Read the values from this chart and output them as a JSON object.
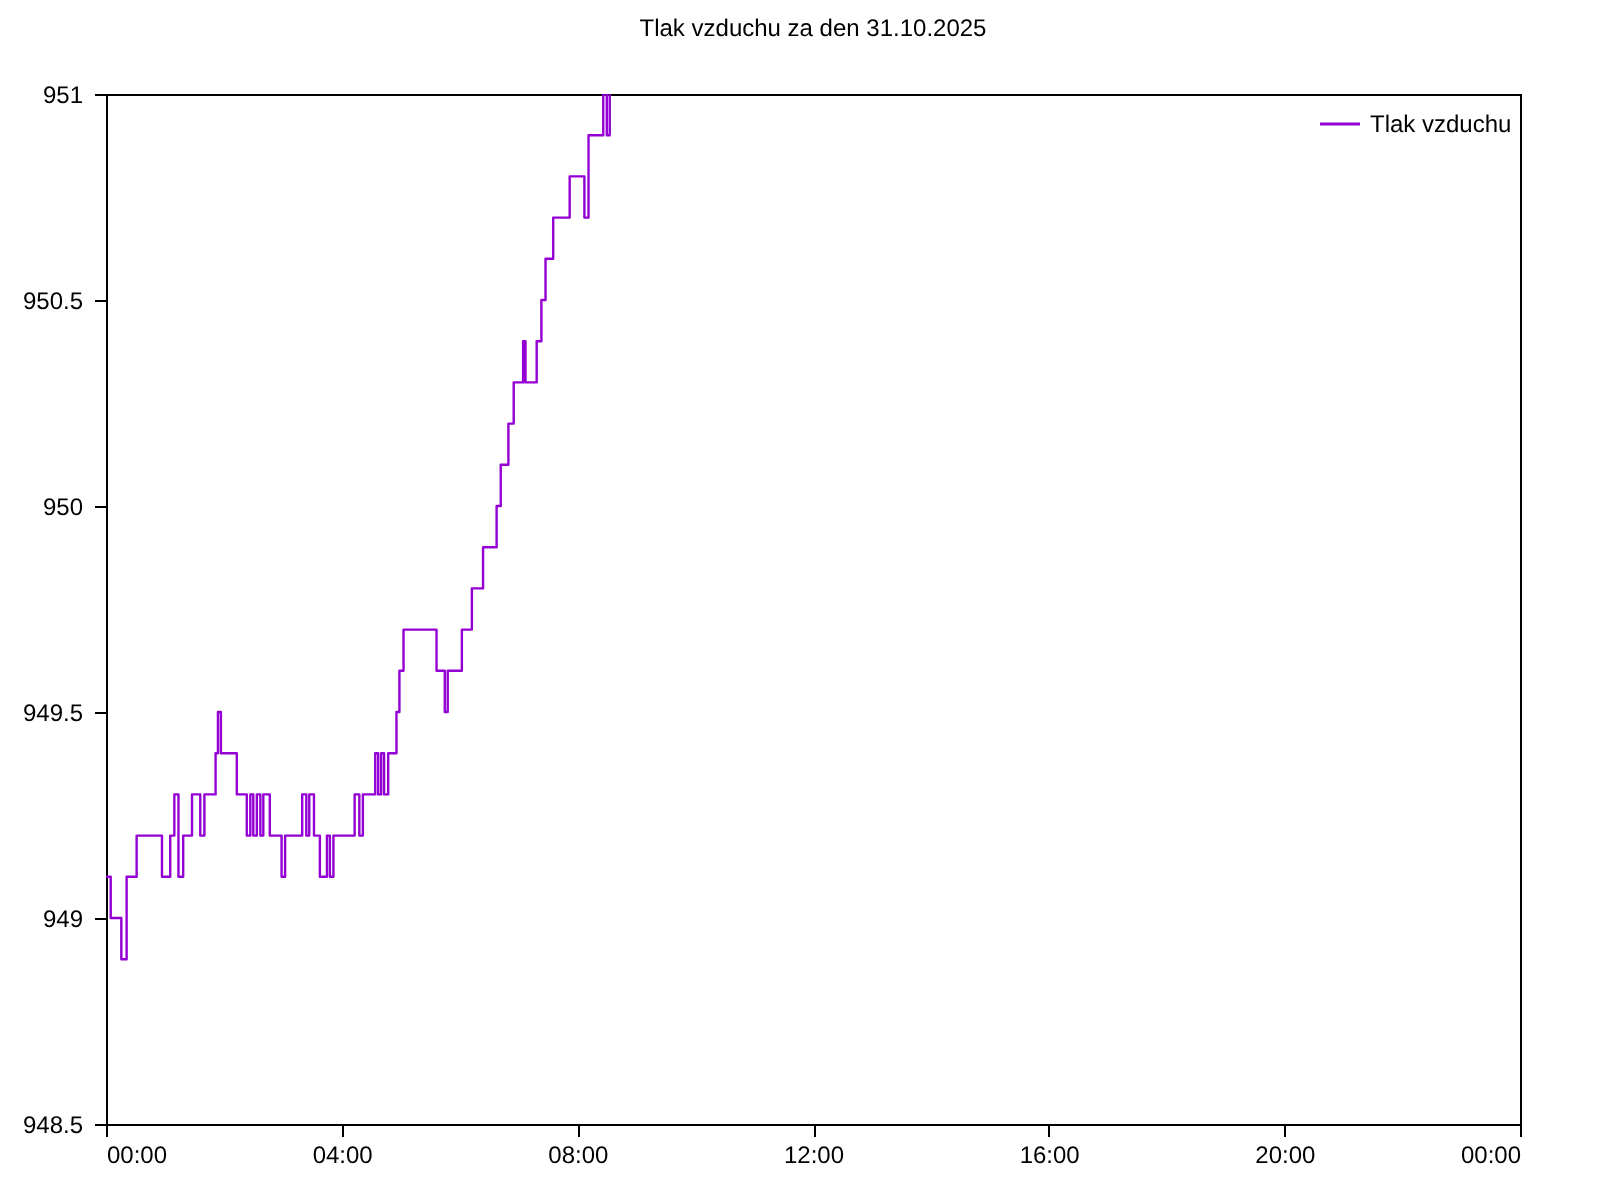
{
  "chart_data": {
    "type": "step",
    "title": "Tlak vzduchu za den 31.10.2025",
    "x": [
      0,
      0.08,
      0.26,
      0.35,
      0.52,
      0.95,
      1.09,
      1.16,
      1.23,
      1.31,
      1.46,
      1.6,
      1.67,
      1.86,
      1.9,
      1.95,
      2.22,
      2.39,
      2.45,
      2.5,
      2.56,
      2.62,
      2.67,
      2.78,
      2.98,
      3.04,
      3.33,
      3.4,
      3.45,
      3.53,
      3.63,
      3.75,
      3.8,
      3.86,
      4.22,
      4.3,
      4.36,
      4.57,
      4.62,
      4.67,
      4.72,
      4.79,
      4.93,
      4.98,
      5.05,
      5.61,
      5.75,
      5.8,
      6.04,
      6.21,
      6.4,
      6.63,
      6.7,
      6.83,
      6.92,
      7.08,
      7.12,
      7.31,
      7.39,
      7.46,
      7.59,
      7.87,
      8.12,
      8.19,
      8.44,
      8.5,
      8.55
    ],
    "series": [
      {
        "name": "Tlak vzduchu",
        "color": "#9400d3",
        "values": [
          949.1,
          949.0,
          948.9,
          949.1,
          949.2,
          949.1,
          949.2,
          949.3,
          949.1,
          949.2,
          949.3,
          949.2,
          949.3,
          949.4,
          949.5,
          949.4,
          949.3,
          949.2,
          949.3,
          949.2,
          949.3,
          949.2,
          949.3,
          949.2,
          949.1,
          949.2,
          949.3,
          949.2,
          949.3,
          949.2,
          949.1,
          949.2,
          949.1,
          949.2,
          949.3,
          949.2,
          949.3,
          949.4,
          949.3,
          949.4,
          949.3,
          949.4,
          949.5,
          949.6,
          949.7,
          949.6,
          949.5,
          949.6,
          949.7,
          949.8,
          949.9,
          950.0,
          950.1,
          950.2,
          950.3,
          950.4,
          950.3,
          950.4,
          950.5,
          950.6,
          950.7,
          950.8,
          950.7,
          950.9,
          951.0,
          950.9,
          951.0
        ]
      }
    ],
    "xlim": [
      0,
      24
    ],
    "xticks": [
      {
        "value": 0,
        "label": "00:00"
      },
      {
        "value": 4,
        "label": "04:00"
      },
      {
        "value": 8,
        "label": "08:00"
      },
      {
        "value": 12,
        "label": "12:00"
      },
      {
        "value": 16,
        "label": "16:00"
      },
      {
        "value": 20,
        "label": "20:00"
      },
      {
        "value": 24,
        "label": "00:00"
      }
    ],
    "ylim": [
      948.5,
      951
    ],
    "yticks": [
      948.5,
      949,
      949.5,
      950,
      950.5,
      951
    ],
    "grid": false,
    "legend": "top right",
    "line_style": "solid",
    "marker": "none"
  }
}
